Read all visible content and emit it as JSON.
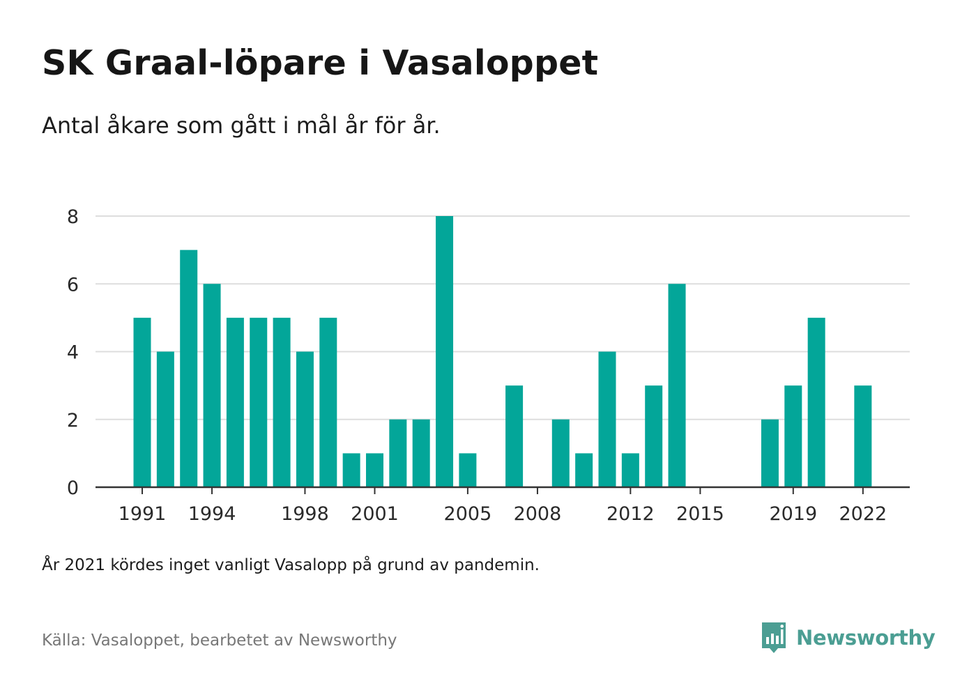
{
  "title": "SK Graal-löpare i Vasaloppet",
  "subtitle": "Antal åkare som gått i mål år för år.",
  "note": "År 2021 kördes inget vanligt Vasalopp på grund av pandemin.",
  "source": "Källa: Vasaloppet, bearbetet av Newsworthy",
  "brand": {
    "name": "Newsworthy",
    "icon": "newsworthy-logo-icon",
    "color": "#4b9e93"
  },
  "chart_data": {
    "type": "bar",
    "title": "SK Graal-löpare i Vasaloppet",
    "subtitle": "Antal åkare som gått i mål år för år.",
    "xlabel": "",
    "ylabel": "",
    "categories": [
      1991,
      1992,
      1993,
      1994,
      1995,
      1996,
      1997,
      1998,
      1999,
      2000,
      2001,
      2002,
      2003,
      2004,
      2005,
      2006,
      2007,
      2008,
      2009,
      2010,
      2011,
      2012,
      2013,
      2014,
      2015,
      2016,
      2017,
      2018,
      2019,
      2020,
      2021,
      2022
    ],
    "values": [
      5,
      4,
      7,
      6,
      5,
      5,
      5,
      4,
      5,
      1,
      1,
      2,
      2,
      8,
      1,
      0,
      3,
      0,
      2,
      1,
      4,
      1,
      3,
      6,
      0,
      0,
      0,
      2,
      3,
      5,
      0,
      3
    ],
    "x_tick_labels": [
      "1991",
      "1994",
      "1998",
      "2001",
      "2005",
      "2008",
      "2012",
      "2015",
      "2019",
      "2022"
    ],
    "y_ticks": [
      0,
      2,
      4,
      6,
      8
    ],
    "ylim": [
      0,
      8
    ],
    "grid": true,
    "legend": "none",
    "bar_color": "#03a699",
    "grid_color": "#dddddd",
    "axis_color": "#333333"
  }
}
